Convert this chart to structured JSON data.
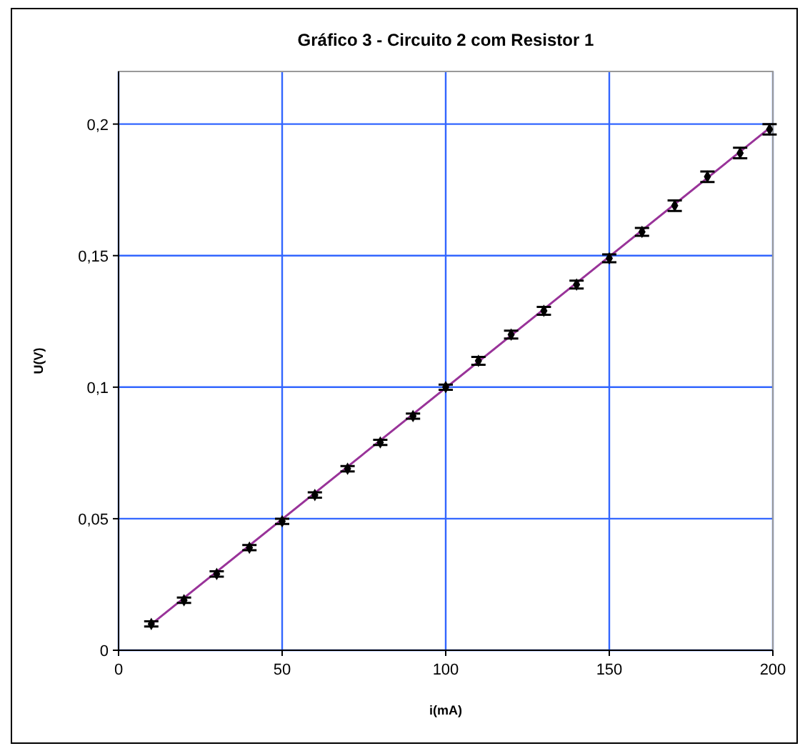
{
  "chart_data": {
    "type": "scatter",
    "title": "Gráfico 3 - Circuito 2 com Resistor 1",
    "xlabel": "i(mA)",
    "ylabel": "U(V)",
    "xlim": [
      0,
      200
    ],
    "xticks": [
      0,
      50,
      100,
      150,
      200
    ],
    "ylim": [
      0,
      0.22
    ],
    "yticks": [
      {
        "value": 0,
        "label": "0"
      },
      {
        "value": 0.05,
        "label": "0,05"
      },
      {
        "value": 0.1,
        "label": "0,1"
      },
      {
        "value": 0.15,
        "label": "0,15"
      },
      {
        "value": 0.2,
        "label": "0,2"
      }
    ],
    "grid": true,
    "series": [
      {
        "color": "#000000",
        "marker": "diamond",
        "x": [
          10,
          20,
          30,
          40,
          50,
          60,
          70,
          80,
          90,
          100,
          110,
          120,
          130,
          140,
          150,
          160,
          170,
          180,
          190,
          199
        ],
        "values": [
          0.01,
          0.019,
          0.029,
          0.039,
          0.049,
          0.059,
          0.069,
          0.079,
          0.089,
          0.1,
          0.11,
          0.12,
          0.129,
          0.139,
          0.149,
          0.159,
          0.169,
          0.18,
          0.189,
          0.198
        ],
        "errors": [
          0.001,
          0.001,
          0.001,
          0.001,
          0.001,
          0.001,
          0.001,
          0.001,
          0.001,
          0.001,
          0.0015,
          0.0015,
          0.0015,
          0.0015,
          0.0015,
          0.0015,
          0.002,
          0.002,
          0.002,
          0.002
        ]
      },
      {
        "type": "line",
        "color": "#993399",
        "line_style": "solid",
        "x": [
          10,
          199
        ],
        "values": [
          0.0099,
          0.1985
        ]
      }
    ]
  }
}
